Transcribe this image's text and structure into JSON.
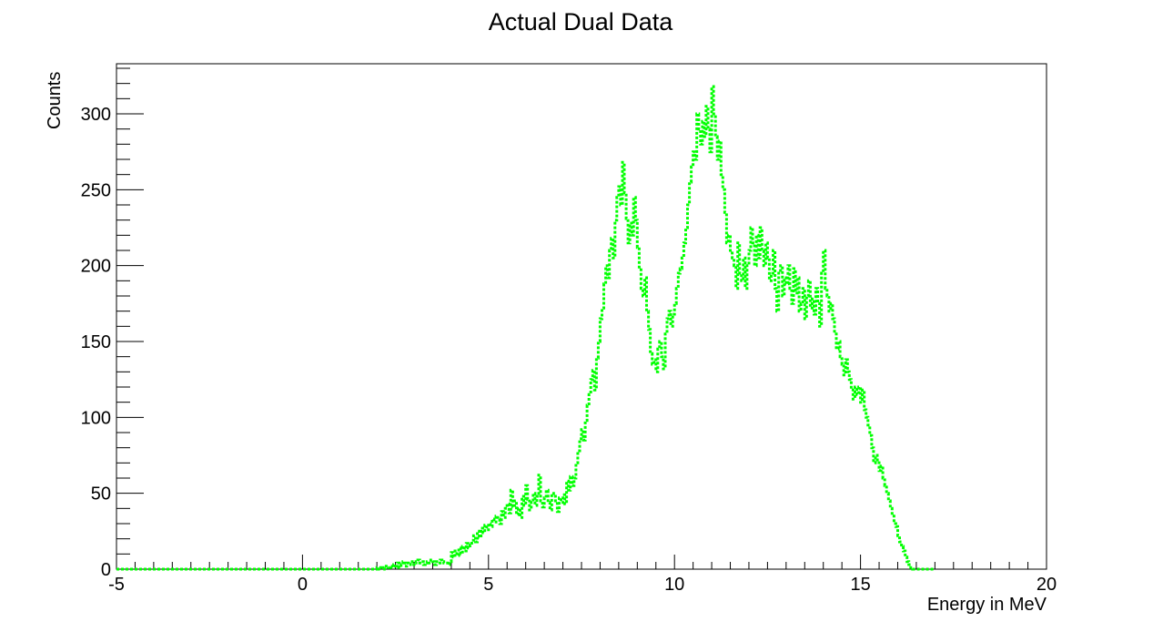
{
  "chart_data": {
    "type": "line",
    "step": true,
    "title": "Actual Dual Data",
    "xlabel": "Energy in MeV",
    "ylabel": "Counts",
    "xlim": [
      -5,
      20
    ],
    "ylim": [
      0,
      333
    ],
    "x_ticks": [
      -5,
      0,
      5,
      10,
      15,
      20
    ],
    "y_ticks": [
      0,
      50,
      100,
      150,
      200,
      250,
      300
    ],
    "line_color": "#00ff00",
    "line_style": "dotted",
    "grid": false,
    "series": [
      {
        "x_start": -5,
        "bin_width": 0.05,
        "values": [
          0,
          0,
          0,
          0,
          0,
          0,
          0,
          0,
          0,
          0,
          0,
          0,
          0,
          0,
          0,
          0,
          0,
          0,
          0,
          0,
          0,
          0,
          0,
          0,
          0,
          0,
          0,
          0,
          0,
          0,
          0,
          0,
          0,
          0,
          0,
          0,
          0,
          0,
          0,
          0,
          0,
          0,
          0,
          0,
          0,
          0,
          0,
          0,
          0,
          0,
          0,
          0,
          0,
          0,
          0,
          0,
          0,
          0,
          0,
          0,
          0,
          0,
          0,
          0,
          0,
          0,
          0,
          0,
          0,
          0,
          0,
          0,
          0,
          0,
          0,
          0,
          0,
          0,
          0,
          0,
          0,
          0,
          0,
          0,
          0,
          0,
          0,
          0,
          0,
          0,
          0,
          0,
          0,
          0,
          0,
          0,
          0,
          0,
          0,
          0,
          0,
          0,
          0,
          0,
          0,
          0,
          0,
          0,
          0,
          0,
          0,
          0,
          0,
          0,
          0,
          0,
          0,
          0,
          0,
          0,
          0,
          0,
          0,
          0,
          0,
          0,
          0,
          0,
          0,
          0,
          0,
          0,
          0,
          0,
          0,
          0,
          0,
          0,
          0,
          0,
          1,
          0,
          1,
          0,
          1,
          2,
          1,
          2,
          1,
          3,
          1,
          4,
          1,
          3,
          5,
          2,
          4,
          3,
          5,
          3,
          4,
          5,
          6,
          4,
          5,
          3,
          4,
          5,
          4,
          6,
          5,
          3,
          5,
          4,
          6,
          5,
          4,
          4,
          3,
          5,
          11,
          8,
          12,
          9,
          14,
          10,
          15,
          12,
          17,
          14,
          16,
          19,
          22,
          18,
          25,
          21,
          27,
          24,
          29,
          26,
          30,
          28,
          33,
          31,
          35,
          33,
          30,
          38,
          34,
          40,
          43,
          37,
          52,
          41,
          45,
          36,
          40,
          34,
          48,
          42,
          55,
          46,
          39,
          44,
          50,
          42,
          48,
          62,
          45,
          41,
          47,
          52,
          44,
          39,
          50,
          48,
          45,
          38,
          47,
          44,
          49,
          43,
          58,
          52,
          61,
          55,
          60,
          70,
          78,
          86,
          92,
          85,
          98,
          108,
          115,
          125,
          131,
          118,
          139,
          150,
          165,
          172,
          188,
          200,
          192,
          210,
          218,
          205,
          230,
          245,
          252,
          240,
          268,
          248,
          231,
          215,
          228,
          220,
          245,
          230,
          212,
          199,
          185,
          180,
          192,
          170,
          158,
          142,
          135,
          138,
          130,
          145,
          150,
          140,
          132,
          155,
          165,
          170,
          160,
          168,
          175,
          185,
          195,
          198,
          205,
          215,
          225,
          240,
          255,
          265,
          275,
          270,
          300,
          290,
          280,
          295,
          285,
          305,
          290,
          275,
          318,
          300,
          285,
          270,
          282,
          260,
          250,
          235,
          215,
          220,
          210,
          205,
          200,
          185,
          215,
          195,
          190,
          205,
          185,
          200,
          210,
          225,
          215,
          200,
          220,
          205,
          225,
          210,
          200,
          215,
          205,
          190,
          195,
          210,
          185,
          170,
          195,
          200,
          180,
          192,
          188,
          200,
          185,
          175,
          198,
          182,
          192,
          170,
          175,
          185,
          165,
          180,
          190,
          172,
          178,
          168,
          185,
          175,
          160,
          195,
          210,
          185,
          180,
          170,
          175,
          165,
          155,
          145,
          150,
          140,
          135,
          128,
          138,
          130,
          125,
          118,
          112,
          120,
          115,
          120,
          110,
          118,
          105,
          100,
          95,
          88,
          80,
          70,
          75,
          72,
          65,
          68,
          60,
          55,
          50,
          45,
          40,
          35,
          30,
          28,
          22,
          18,
          15,
          12,
          8,
          5,
          3,
          1,
          0,
          0,
          0,
          0,
          0,
          0,
          0,
          0,
          0,
          0,
          0,
          0
        ]
      }
    ]
  }
}
